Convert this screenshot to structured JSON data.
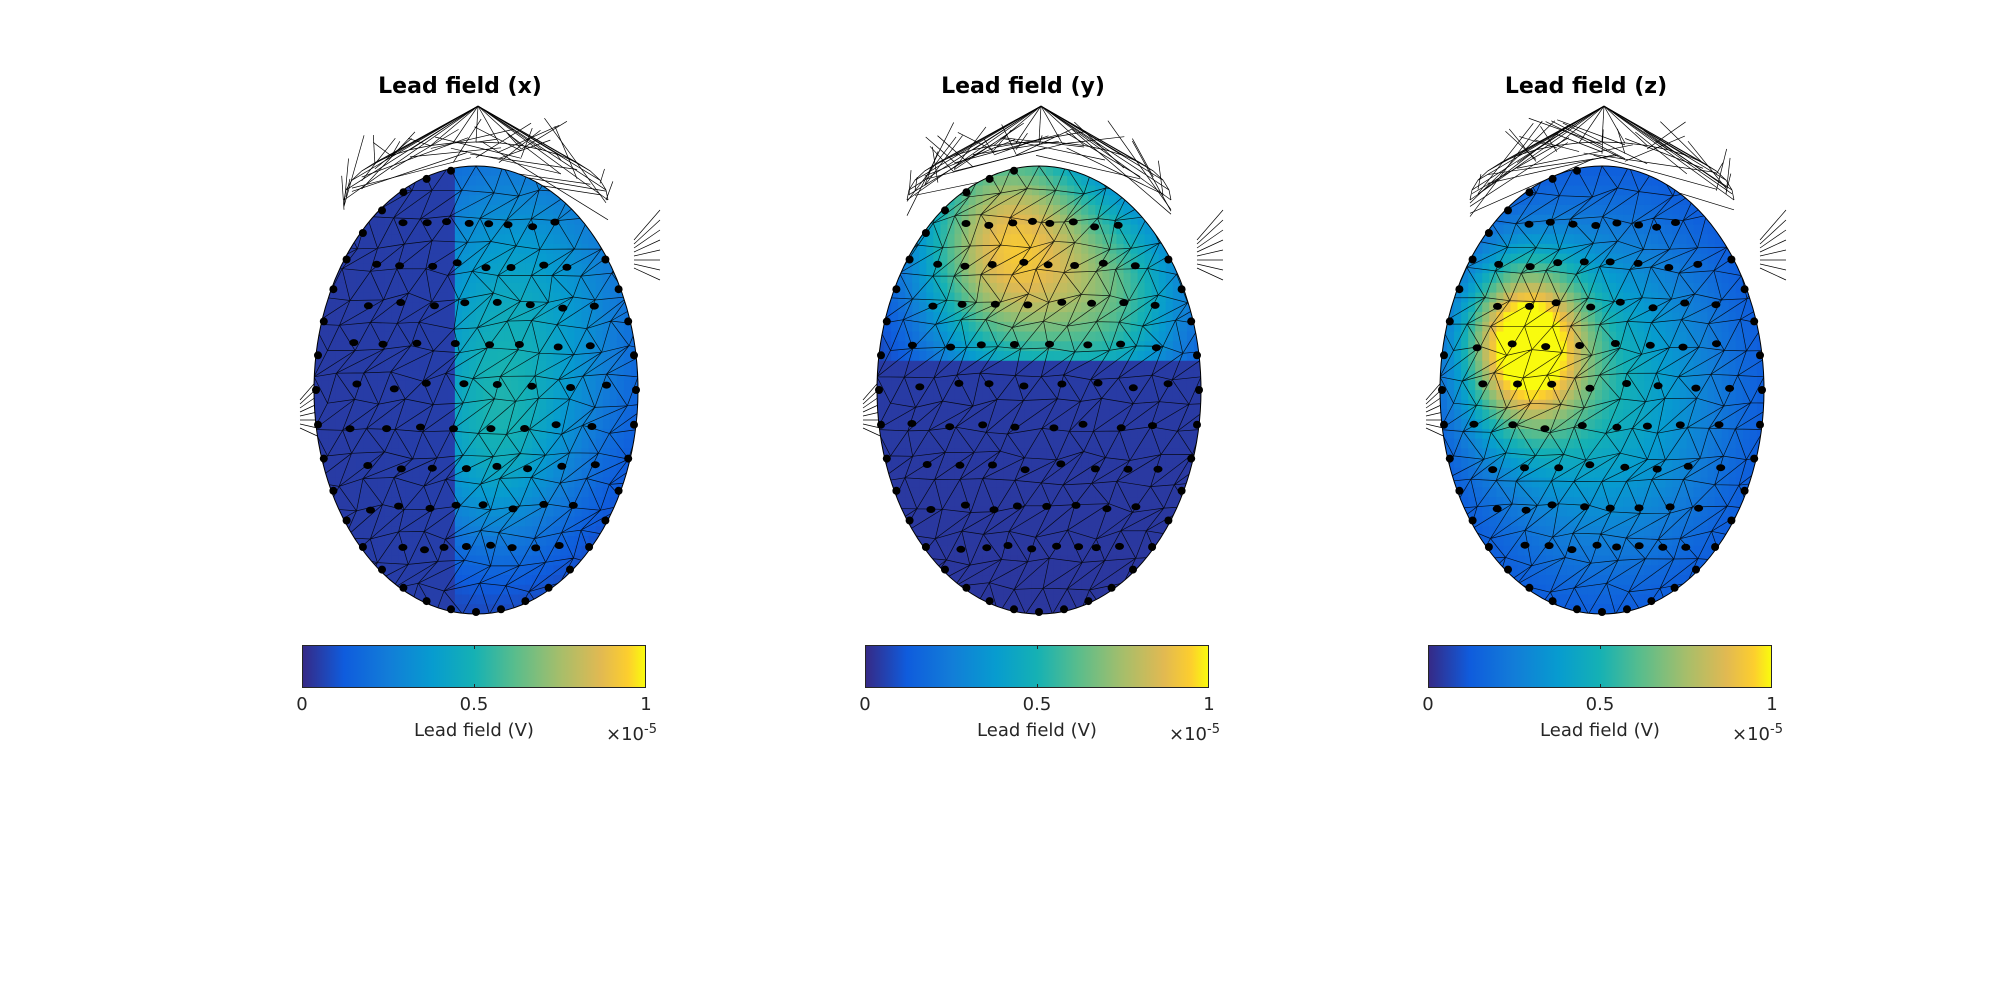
{
  "chart_data": [
    {
      "type": "heatmap",
      "title": "Lead field (x)",
      "colorbar": {
        "label": "Lead field (V)",
        "ticks": [
          "0",
          "0.5",
          "1"
        ],
        "range": [
          0,
          1
        ],
        "exponent_mult": "×10",
        "exponent_power": "-5"
      },
      "colormap": "parula",
      "hotspots": [
        {
          "x": 0.62,
          "y": 0.32,
          "value": 0.4,
          "spread": 0.4
        },
        {
          "x": 0.55,
          "y": 0.65,
          "value": 0.25,
          "spread": 0.25
        }
      ],
      "cut": {
        "axis": "x",
        "at": 0.44,
        "low_side_value": 0.04
      }
    },
    {
      "type": "heatmap",
      "title": "Lead field (y)",
      "colorbar": {
        "label": "Lead field (V)",
        "ticks": [
          "0",
          "0.5",
          "1"
        ],
        "range": [
          0,
          1
        ],
        "exponent_mult": "×10",
        "exponent_power": "-5"
      },
      "colormap": "parula",
      "hotspots": [
        {
          "x": 0.4,
          "y": 0.18,
          "value": 0.85,
          "spread": 0.28
        },
        {
          "x": 0.75,
          "y": 0.3,
          "value": 0.45,
          "spread": 0.25
        }
      ],
      "cut": {
        "axis": "y",
        "at": 0.43,
        "high_side_value": 0.03
      }
    },
    {
      "type": "heatmap",
      "title": "Lead field (z)",
      "colorbar": {
        "label": "Lead field (V)",
        "ticks": [
          "0",
          "0.5",
          "1"
        ],
        "range": [
          0,
          1
        ],
        "exponent_mult": "×10",
        "exponent_power": "-5"
      },
      "colormap": "parula",
      "hotspots": [
        {
          "x": 0.26,
          "y": 0.4,
          "value": 0.9,
          "spread": 0.18
        },
        {
          "x": 0.5,
          "y": 0.5,
          "value": 0.45,
          "spread": 0.42
        }
      ],
      "cut": null
    }
  ]
}
